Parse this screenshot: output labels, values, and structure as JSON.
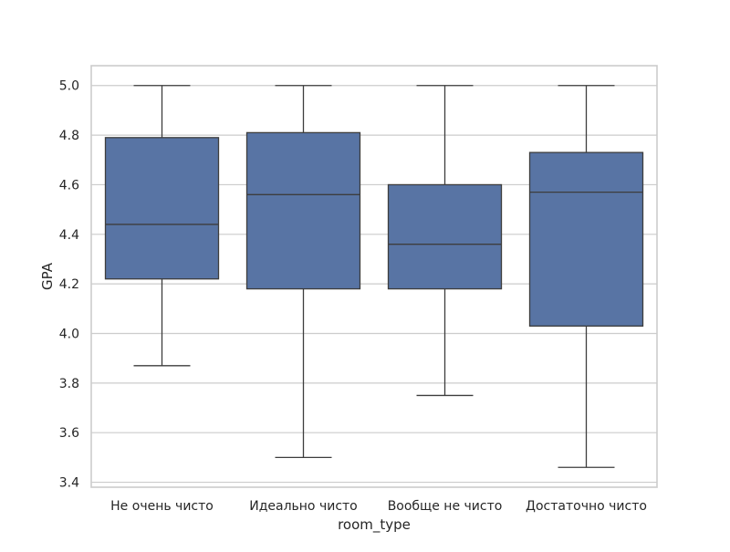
{
  "chart_data": {
    "type": "box",
    "title": "",
    "xlabel": "room_type",
    "ylabel": "GPA",
    "ylim": [
      3.38,
      5.08
    ],
    "yticks": [
      3.4,
      3.6,
      3.8,
      4.0,
      4.2,
      4.4,
      4.6,
      4.8,
      5.0
    ],
    "ytick_labels": [
      "3.4",
      "3.6",
      "3.8",
      "4.0",
      "4.2",
      "4.4",
      "4.6",
      "4.8",
      "5.0"
    ],
    "grid": true,
    "legend": "none",
    "box_color": "#5874a4",
    "edge_color": "#3d3d3d",
    "categories": [
      "Не очень чисто",
      "Идеально чисто",
      "Вообще не чисто",
      "Достаточно чисто"
    ],
    "boxes": [
      {
        "whisker_low": 3.87,
        "q1": 4.22,
        "median": 4.44,
        "q3": 4.79,
        "whisker_high": 5.0
      },
      {
        "whisker_low": 3.5,
        "q1": 4.18,
        "median": 4.56,
        "q3": 4.81,
        "whisker_high": 5.0
      },
      {
        "whisker_low": 3.75,
        "q1": 4.18,
        "median": 4.36,
        "q3": 4.6,
        "whisker_high": 5.0
      },
      {
        "whisker_low": 3.46,
        "q1": 4.03,
        "median": 4.57,
        "q3": 4.73,
        "whisker_high": 5.0
      }
    ]
  }
}
